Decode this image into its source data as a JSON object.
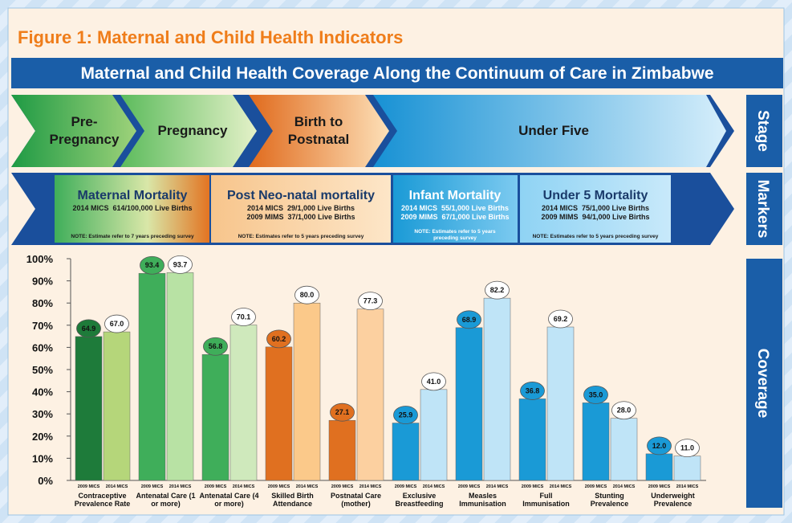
{
  "figure_title": "Figure 1: Maternal and Child Health Indicators",
  "banner": "Maternal and Child Health Coverage Along the Continuum of Care in Zimbabwe",
  "side_labels": [
    "Stage",
    "Markers",
    "Coverage"
  ],
  "stages": [
    [
      "Pre-",
      "Pregnancy"
    ],
    [
      "Pregnancy"
    ],
    [
      "Birth to",
      "Postnatal"
    ],
    [
      "Under Five"
    ]
  ],
  "markers": [
    {
      "title": "Maternal Mortality",
      "lines": [
        "2014 MICS  614/100,000 Live Births"
      ],
      "note": [
        "NOTE: Estimate refer to 7 years preceding survey"
      ]
    },
    {
      "title": "Post Neo-natal mortality",
      "lines": [
        "2014 MICS  29/1,000 Live Births",
        "2009 MIMS  37/1,000 Live Births"
      ],
      "note": [
        "NOTE: Estimates refer to 5 years preceding survey"
      ]
    },
    {
      "title": "Infant Mortality",
      "lines": [
        "2014 MICS  55/1,000 Live Births",
        "2009 MIMS  67/1,000 Live Births"
      ],
      "note": [
        "NOTE: Estimates refer to 5 years",
        "preceding survey"
      ]
    },
    {
      "title": "Under 5 Mortality",
      "lines": [
        "2014 MICS  75/1,000 Live Births",
        "2009 MIMS  94/1,000 Live Births"
      ],
      "note": [
        "NOTE: Estimates refer to 5 years preceding survey"
      ]
    }
  ],
  "chart_data": {
    "type": "bar",
    "categories": [
      "Contraceptive Prevalence Rate",
      "Antenatal Care (1 or more)",
      "Antenatal Care (4 or more)",
      "Skilled Birth Attendance",
      "Postnatal Care (mother)",
      "Exclusive Breastfeeding",
      "Measles Immunisation",
      "Full Immunisation",
      "Stunting Prevalence",
      "Underweight Prevalence"
    ],
    "series": [
      {
        "name": "2009 MICS",
        "colors": [
          "#1e7b3a",
          "#3fae5a",
          "#3fae5a",
          "#e07020",
          "#e07020",
          "#1a9ad6",
          "#1a9ad6",
          "#1a9ad6",
          "#1a9ad6",
          "#1a9ad6"
        ],
        "values": [
          64.9,
          93.4,
          56.8,
          60.2,
          27.1,
          25.9,
          68.9,
          36.8,
          35.0,
          12.0
        ],
        "value_labels": [
          "64.9",
          "93.4",
          "56.8",
          "60.2",
          "27.1",
          "25.9",
          "68.9",
          "36.8",
          "35.0",
          "12.0"
        ]
      },
      {
        "name": "2014 MICS",
        "colors": [
          "#b5d67a",
          "#b8e2a4",
          "#cfe9bc",
          "#fbc98a",
          "#fcd0a0",
          "#bfe4f7",
          "#bfe4f7",
          "#bfe4f7",
          "#bfe4f7",
          "#bfe4f7"
        ],
        "values": [
          67.0,
          93.7,
          70.1,
          80.0,
          77.3,
          41.0,
          82.2,
          69.2,
          28.0,
          11.0
        ],
        "value_labels": [
          "67.0",
          "93.7",
          "70.1",
          "80.0",
          "77.3",
          "41.0",
          "82.2",
          "69.2",
          "28.0",
          "11.0"
        ]
      }
    ],
    "ylim": [
      0,
      100
    ],
    "yticks": [
      {
        "value": 0,
        "label": "0%"
      },
      {
        "value": 10,
        "label": "10%"
      },
      {
        "value": 20,
        "label": "20%"
      },
      {
        "value": 30,
        "label": "30%"
      },
      {
        "value": 40,
        "label": "40%"
      },
      {
        "value": 50,
        "label": "50%"
      },
      {
        "value": 60,
        "label": "60%"
      },
      {
        "value": 70,
        "label": "70%"
      },
      {
        "value": 80,
        "label": "80%"
      },
      {
        "value": 90,
        "label": "90%"
      },
      {
        "value": 100,
        "label": "100%"
      }
    ]
  }
}
